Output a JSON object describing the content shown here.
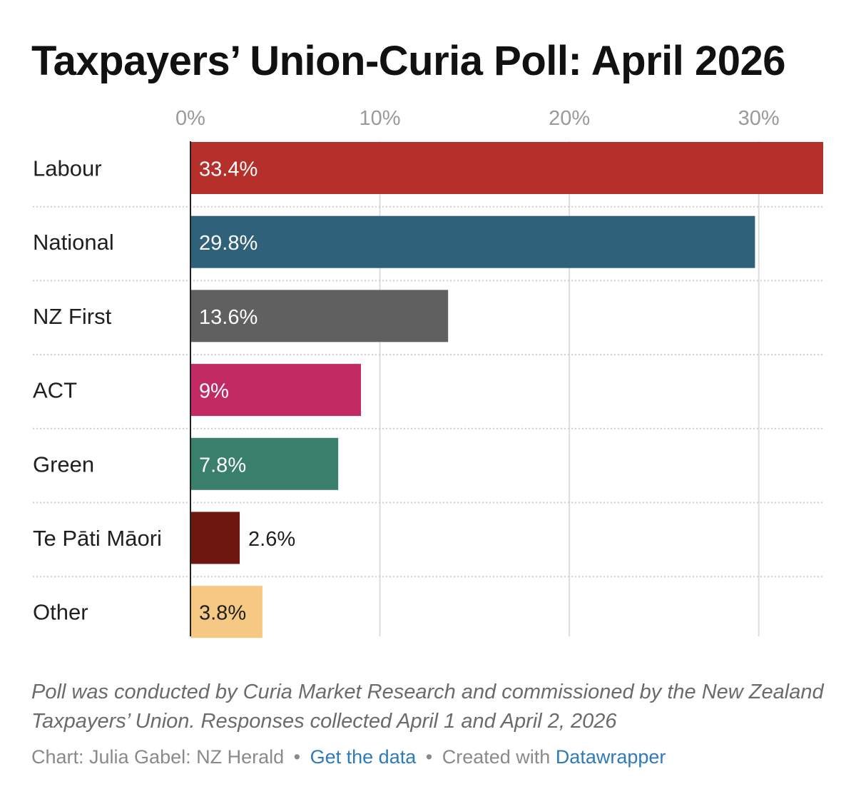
{
  "chart_data": {
    "type": "bar",
    "orientation": "horizontal",
    "title": "Taxpayers’ Union-Curia Poll: April 2026",
    "xlabel": "",
    "ylabel": "",
    "xlim": [
      0,
      33.4
    ],
    "ticks": [
      0,
      10,
      20,
      30
    ],
    "tick_labels": [
      "0%",
      "10%",
      "20%",
      "30%"
    ],
    "grid": true,
    "categories": [
      "Labour",
      "National",
      "NZ First",
      "ACT",
      "Green",
      "Te Pāti Māori",
      "Other"
    ],
    "values": [
      33.4,
      29.8,
      13.6,
      9,
      7.8,
      2.6,
      3.8
    ],
    "value_labels": [
      "33.4%",
      "29.8%",
      "13.6%",
      "9%",
      "7.8%",
      "2.6%",
      "3.8%"
    ],
    "colors": [
      "#b5302a",
      "#2f617a",
      "#606060",
      "#c12a63",
      "#3a7f6c",
      "#6e1710",
      "#f5c983"
    ],
    "label_colors": [
      "#ffffff",
      "#ffffff",
      "#ffffff",
      "#ffffff",
      "#ffffff",
      "#1f1f1f",
      "#1f1f1f"
    ],
    "label_inside": [
      true,
      true,
      true,
      true,
      true,
      false,
      true
    ]
  },
  "notes": "Poll was conducted by Curia Market Research and commissioned by the New Zealand Taxpayers’ Union. Responses collected April 1 and April 2, 2026",
  "credit": {
    "prefix": "Chart: Julia Gabel: NZ Herald",
    "separator": "•",
    "data_link": "Get the data",
    "created_with": "Created with",
    "tool_link": "Datawrapper"
  }
}
